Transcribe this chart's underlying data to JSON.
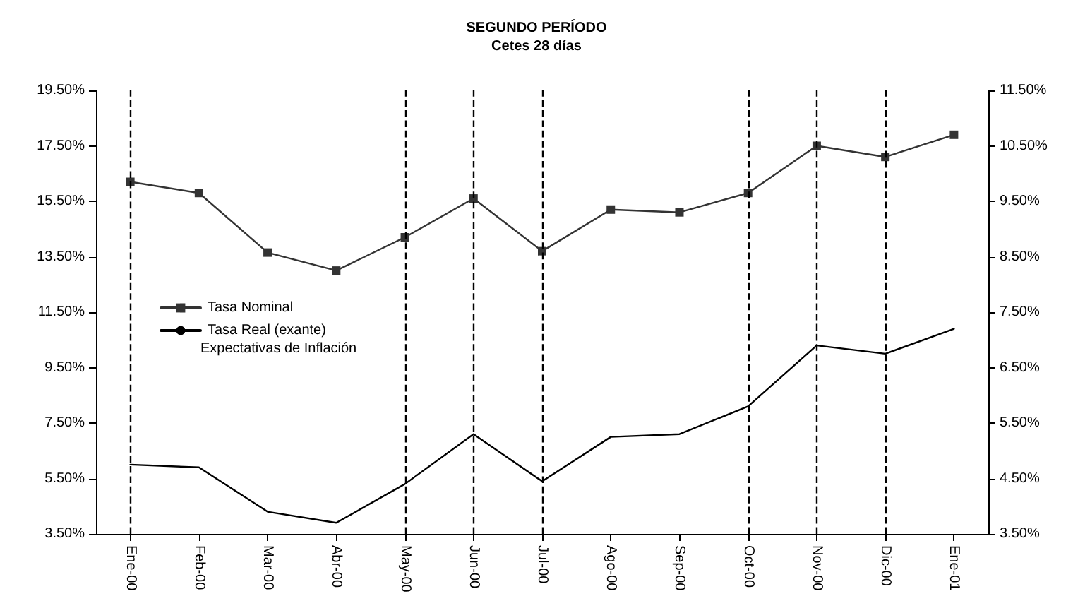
{
  "chart_data": {
    "type": "line",
    "title": "SEGUNDO PERÍODO",
    "subtitle": "Cetes 28 días",
    "categories": [
      "Ene-00",
      "Feb-00",
      "Mar-00",
      "Abr-00",
      "May-00",
      "Jun-00",
      "Jul-00",
      "Ago-00",
      "Sep-00",
      "Oct-00",
      "Nov-00",
      "Dic-00",
      "Ene-01"
    ],
    "series": [
      {
        "name": "Tasa Nominal",
        "color": "#333333",
        "marker": "square",
        "values": [
          16.2,
          15.8,
          13.65,
          13.0,
          14.2,
          15.6,
          13.7,
          15.2,
          15.1,
          15.8,
          17.5,
          17.1,
          17.9
        ]
      },
      {
        "name": "Tasa Real (exante)",
        "color": "#000000",
        "marker": "none",
        "values": [
          6.0,
          5.9,
          4.3,
          3.9,
          5.3,
          7.1,
          5.4,
          7.0,
          7.1,
          8.1,
          10.3,
          10.0,
          10.9
        ]
      }
    ],
    "annotations": [
      "Expectativas de Inflación"
    ],
    "ylim": [
      3.5,
      19.5
    ],
    "yticks": [
      {
        "value": 3.5,
        "label": "3.50%"
      },
      {
        "value": 5.5,
        "label": "5.50%"
      },
      {
        "value": 7.5,
        "label": "7.50%"
      },
      {
        "value": 9.5,
        "label": "9.50%"
      },
      {
        "value": 11.5,
        "label": "11.50%"
      },
      {
        "value": 13.5,
        "label": "13.50%"
      },
      {
        "value": 15.5,
        "label": "15.50%"
      },
      {
        "value": 17.5,
        "label": "17.50%"
      },
      {
        "value": 19.5,
        "label": "19.50%"
      }
    ],
    "y2lim": [
      3.5,
      11.5
    ],
    "y2ticks": [
      {
        "value": 3.5,
        "label": "3.50%"
      },
      {
        "value": 4.5,
        "label": "4.50%"
      },
      {
        "value": 5.5,
        "label": "5.50%"
      },
      {
        "value": 6.5,
        "label": "6.50%"
      },
      {
        "value": 7.5,
        "label": "7.50%"
      },
      {
        "value": 8.5,
        "label": "8.50%"
      },
      {
        "value": 9.5,
        "label": "9.50%"
      },
      {
        "value": 10.5,
        "label": "10.50%"
      },
      {
        "value": 11.5,
        "label": "11.50%"
      }
    ],
    "ref_lines": [
      {
        "axis": "x",
        "value": "Ene-00",
        "color": "#000000",
        "line_style": "dashed"
      },
      {
        "axis": "x",
        "value": "May-00",
        "color": "#000000",
        "line_style": "dashed"
      },
      {
        "axis": "x",
        "value": "Jun-00",
        "color": "#000000",
        "line_style": "dashed"
      },
      {
        "axis": "x",
        "value": "Jul-00",
        "color": "#000000",
        "line_style": "dashed"
      },
      {
        "axis": "x",
        "value": "Oct-00",
        "color": "#000000",
        "line_style": "dashed"
      },
      {
        "axis": "x",
        "value": "Nov-00",
        "color": "#000000",
        "line_style": "dashed"
      },
      {
        "axis": "x",
        "value": "Dic-00",
        "color": "#000000",
        "line_style": "dashed"
      }
    ],
    "line_style": "solid",
    "grid": false,
    "legend": "left"
  }
}
